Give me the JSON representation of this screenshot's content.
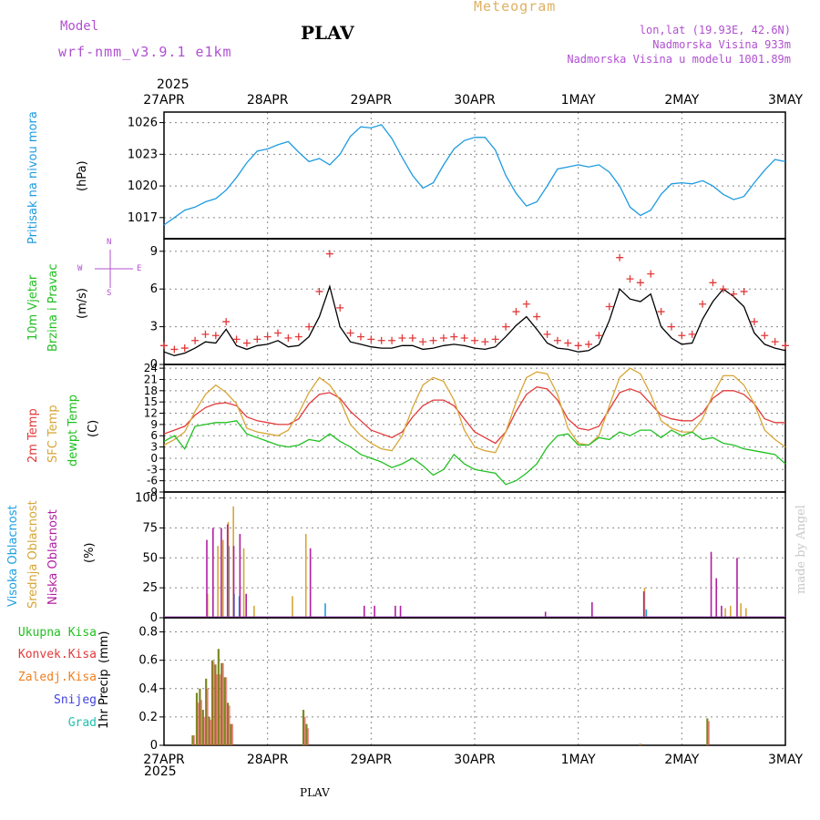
{
  "header": {
    "model_label": "Model",
    "model_name": "wrf-nmm_v3.9.1 e1km",
    "station": "PLAV",
    "meteogram_title": "Meteogram",
    "lonlat": "lon,lat (19.93E, 42.6N)",
    "altitude": "Nadmorska Visina 933m",
    "model_altitude": "Nadmorska Visina u modelu 1001.89m",
    "year_top": "2025",
    "year_bottom": "2025",
    "footer_station": "PLAV",
    "watermark": "made by Angel"
  },
  "colors": {
    "pressure": "#1e9be0",
    "wind_speed": "#000000",
    "gust": "#e23a3a",
    "temp2m": "#e23a3a",
    "sfc_temp": "#d8a637",
    "dewpt": "#20c020",
    "cloud_high": "#20a0e0",
    "cloud_mid": "#d8a637",
    "cloud_low": "#b020a0",
    "precip_total": "#20c020",
    "precip_conv": "#e23a3a",
    "precip_frz": "#f08020",
    "precip_snow": "#4040e0",
    "precip_hail": "#20c0b0",
    "label_purple": "#b050d0",
    "label_orange": "#e0b060"
  },
  "x_axis": {
    "ticks": [
      "27APR",
      "28APR",
      "29APR",
      "30APR",
      "1MAY",
      "2MAY",
      "3MAY"
    ]
  },
  "chart_data": [
    {
      "type": "line",
      "panel": "pressure",
      "ylabel_left": "Pritisak na nivou mora",
      "ylabel_unit": "(hPa)",
      "ylim": [
        1015,
        1027
      ],
      "yticks": [
        "1017",
        "1020",
        "1023",
        "1026"
      ],
      "grid": true,
      "x_days": [
        0.0,
        0.1,
        0.2,
        0.3,
        0.4,
        0.5,
        0.6,
        0.7,
        0.8,
        0.9,
        1.0,
        1.1,
        1.2,
        1.3,
        1.4,
        1.5,
        1.6,
        1.7,
        1.8,
        1.9,
        2.0,
        2.1,
        2.2,
        2.3,
        2.4,
        2.5,
        2.6,
        2.7,
        2.8,
        2.9,
        3.0,
        3.1,
        3.2,
        3.3,
        3.4,
        3.5,
        3.6,
        3.7,
        3.8,
        3.9,
        4.0,
        4.1,
        4.2,
        4.3,
        4.4,
        4.5,
        4.6,
        4.7,
        4.8,
        4.9,
        5.0,
        5.1,
        5.2,
        5.3,
        5.4,
        5.5,
        5.6,
        5.7,
        5.8,
        5.9,
        6.0
      ],
      "series": [
        {
          "values": [
            1016.3,
            1017.0,
            1017.7,
            1018.0,
            1018.5,
            1018.8,
            1019.6,
            1020.8,
            1022.2,
            1023.3,
            1023.5,
            1023.9,
            1024.2,
            1023.2,
            1022.3,
            1022.6,
            1022.0,
            1023.0,
            1024.7,
            1025.6,
            1025.5,
            1025.8,
            1024.5,
            1022.7,
            1021.0,
            1019.8,
            1020.3,
            1022.0,
            1023.5,
            1024.3,
            1024.6,
            1024.6,
            1023.4,
            1021.0,
            1019.3,
            1018.1,
            1018.5,
            1020.0,
            1021.6,
            1021.8,
            1022.0,
            1021.8,
            1022.0,
            1021.3,
            1020.0,
            1018.0,
            1017.2,
            1017.7,
            1019.2,
            1020.2,
            1020.3,
            1020.2,
            1020.5,
            1020.0,
            1019.2,
            1018.7,
            1019.0,
            1020.3,
            1021.5,
            1022.5,
            1022.3
          ]
        }
      ]
    },
    {
      "type": "line",
      "panel": "wind",
      "ylabel_left": [
        "10m Vjetar",
        "Brzina i Pravac"
      ],
      "ylabel_unit": "(m/s)",
      "compass": {
        "n": "N",
        "w": "W",
        "e": "E",
        "s": "S"
      },
      "ylim": [
        0,
        10
      ],
      "yticks": [
        "0",
        "3",
        "6",
        "9"
      ],
      "grid": true,
      "x_days": [
        0.0,
        0.1,
        0.2,
        0.3,
        0.4,
        0.5,
        0.6,
        0.7,
        0.8,
        0.9,
        1.0,
        1.1,
        1.2,
        1.3,
        1.4,
        1.5,
        1.6,
        1.7,
        1.8,
        1.9,
        2.0,
        2.1,
        2.2,
        2.3,
        2.4,
        2.5,
        2.6,
        2.7,
        2.8,
        2.9,
        3.0,
        3.1,
        3.2,
        3.3,
        3.4,
        3.5,
        3.6,
        3.7,
        3.8,
        3.9,
        4.0,
        4.1,
        4.2,
        4.3,
        4.4,
        4.5,
        4.6,
        4.7,
        4.8,
        4.9,
        5.0,
        5.1,
        5.2,
        5.3,
        5.4,
        5.5,
        5.6,
        5.7,
        5.8,
        5.9,
        6.0
      ],
      "series": [
        {
          "name": "speed",
          "values": [
            1.0,
            0.7,
            0.9,
            1.3,
            1.8,
            1.7,
            2.8,
            1.5,
            1.2,
            1.5,
            1.6,
            1.9,
            1.4,
            1.5,
            2.2,
            3.8,
            6.2,
            3.0,
            1.8,
            1.6,
            1.4,
            1.3,
            1.3,
            1.5,
            1.5,
            1.2,
            1.3,
            1.5,
            1.6,
            1.5,
            1.3,
            1.2,
            1.4,
            2.2,
            3.1,
            3.8,
            2.8,
            1.7,
            1.3,
            1.2,
            1.0,
            1.1,
            1.6,
            3.5,
            6.0,
            5.2,
            5.0,
            5.6,
            3.0,
            2.1,
            1.6,
            1.7,
            3.6,
            5.0,
            6.0,
            5.4,
            4.6,
            2.5,
            1.6,
            1.3,
            1.1
          ]
        },
        {
          "name": "gust",
          "values": [
            1.5,
            1.2,
            1.3,
            1.9,
            2.4,
            2.3,
            3.4,
            2.0,
            1.7,
            2.0,
            2.2,
            2.5,
            2.1,
            2.2,
            3.0,
            5.8,
            8.8,
            4.5,
            2.5,
            2.2,
            2.0,
            1.9,
            1.9,
            2.1,
            2.1,
            1.8,
            1.9,
            2.1,
            2.2,
            2.1,
            1.9,
            1.8,
            2.0,
            3.0,
            4.2,
            4.8,
            3.8,
            2.4,
            1.9,
            1.7,
            1.5,
            1.6,
            2.3,
            4.6,
            8.5,
            6.8,
            6.5,
            7.2,
            4.2,
            3.0,
            2.3,
            2.4,
            4.8,
            6.5,
            6.0,
            5.6,
            5.8,
            3.4,
            2.3,
            1.8,
            1.5
          ]
        }
      ],
      "gust_marker": "+"
    },
    {
      "type": "line",
      "panel": "temperature",
      "ylabel_left": [
        "2m Temp",
        "SFC Temp",
        "dewpt Temp"
      ],
      "ylabel_unit": "(C)",
      "ylim": [
        -9,
        25
      ],
      "yticks": [
        "-9",
        "-6",
        "-3",
        "0",
        "3",
        "6",
        "9",
        "12",
        "15",
        "18",
        "21",
        "24"
      ],
      "grid": true,
      "x_days": [
        0.0,
        0.1,
        0.2,
        0.3,
        0.4,
        0.5,
        0.6,
        0.7,
        0.8,
        0.9,
        1.0,
        1.1,
        1.2,
        1.3,
        1.4,
        1.5,
        1.6,
        1.7,
        1.8,
        1.9,
        2.0,
        2.1,
        2.2,
        2.3,
        2.4,
        2.5,
        2.6,
        2.7,
        2.8,
        2.9,
        3.0,
        3.1,
        3.2,
        3.3,
        3.4,
        3.5,
        3.6,
        3.7,
        3.8,
        3.9,
        4.0,
        4.1,
        4.2,
        4.3,
        4.4,
        4.5,
        4.6,
        4.7,
        4.8,
        4.9,
        5.0,
        5.1,
        5.2,
        5.3,
        5.4,
        5.5,
        5.6,
        5.7,
        5.8,
        5.9,
        6.0
      ],
      "series": [
        {
          "name": "2m Temp",
          "values": [
            6.5,
            7.5,
            8.5,
            11.5,
            13.5,
            14.5,
            14.8,
            14.0,
            11.0,
            10.0,
            9.5,
            9.0,
            9.0,
            10.5,
            14.5,
            17.0,
            17.5,
            16.0,
            12.5,
            10.0,
            7.5,
            6.5,
            5.5,
            7.0,
            11.0,
            14.0,
            15.5,
            15.5,
            14.0,
            10.5,
            7.0,
            5.5,
            4.0,
            7.0,
            12.5,
            17.0,
            19.0,
            18.5,
            15.5,
            10.5,
            8.0,
            7.5,
            8.5,
            13.0,
            17.5,
            18.5,
            17.5,
            14.5,
            11.5,
            10.5,
            10.0,
            10.0,
            12.0,
            16.0,
            18.0,
            18.0,
            17.0,
            14.5,
            10.5,
            9.5,
            9.5
          ]
        },
        {
          "name": "SFC Temp",
          "values": [
            3.5,
            5.0,
            7.0,
            12.5,
            17.0,
            19.5,
            17.5,
            14.5,
            8.0,
            7.0,
            6.5,
            6.0,
            7.5,
            12.0,
            17.5,
            21.5,
            19.5,
            15.5,
            9.0,
            6.0,
            4.0,
            2.5,
            2.0,
            6.0,
            13.5,
            19.5,
            21.5,
            20.5,
            15.5,
            7.5,
            3.0,
            2.0,
            1.5,
            7.0,
            15.0,
            21.5,
            23.0,
            22.5,
            17.0,
            8.0,
            4.0,
            3.5,
            6.0,
            14.0,
            21.5,
            24.0,
            22.5,
            17.0,
            10.0,
            8.0,
            7.0,
            7.0,
            10.5,
            17.0,
            22.0,
            22.0,
            19.5,
            14.5,
            7.5,
            5.0,
            3.0
          ]
        },
        {
          "name": "dewpt Temp",
          "values": [
            4.5,
            6.0,
            2.5,
            8.5,
            9.0,
            9.5,
            9.5,
            10.0,
            6.5,
            5.5,
            4.5,
            3.5,
            3.0,
            3.5,
            5.0,
            4.5,
            6.5,
            4.5,
            3.0,
            1.0,
            0.0,
            -1.0,
            -2.5,
            -1.5,
            0.0,
            -2.0,
            -4.5,
            -3.0,
            1.0,
            -1.5,
            -3.0,
            -3.5,
            -4.0,
            -7.0,
            -6.0,
            -4.0,
            -1.5,
            3.0,
            6.0,
            6.5,
            3.5,
            3.5,
            5.5,
            5.0,
            7.0,
            6.0,
            7.5,
            7.5,
            5.5,
            7.5,
            6.0,
            7.0,
            5.0,
            5.5,
            4.0,
            3.5,
            2.5,
            2.0,
            1.5,
            1.0,
            -1.5
          ]
        }
      ]
    },
    {
      "type": "bar",
      "panel": "clouds",
      "ylabel_left": [
        "Visoka Oblacnost",
        "Srednja Oblacnost",
        "Niska Oblacnost"
      ],
      "ylabel_unit": "(%)",
      "ylim": [
        0,
        105
      ],
      "yticks": [
        "0",
        "25",
        "50",
        "75",
        "100"
      ],
      "grid": true,
      "series": [
        {
          "name": "Visoka Oblacnost",
          "x_days": [
            0.62,
            0.67,
            0.72,
            1.5,
            1.55,
            4.65
          ],
          "values": [
            60,
            20,
            18,
            0,
            12,
            7
          ]
        },
        {
          "name": "Srednja Oblacnost",
          "x_days": [
            0.4,
            0.5,
            0.55,
            0.6,
            0.65,
            0.75,
            0.85,
            1.22,
            1.35,
            4.62,
            5.4,
            5.45,
            5.55,
            5.6
          ],
          "values": [
            20,
            60,
            65,
            80,
            93,
            58,
            10,
            18,
            70,
            25,
            8,
            10,
            12,
            8
          ]
        },
        {
          "name": "Niska Oblacnost",
          "x_days": [
            0.38,
            0.44,
            0.52,
            0.58,
            0.64,
            0.7,
            0.76,
            1.38,
            1.9,
            2.0,
            2.2,
            2.25,
            3.65,
            4.1,
            4.6,
            5.25,
            5.3,
            5.35,
            5.5
          ],
          "values": [
            65,
            75,
            75,
            78,
            60,
            70,
            20,
            58,
            10,
            10,
            10,
            10,
            5,
            13,
            22,
            55,
            33,
            10,
            50
          ]
        }
      ]
    },
    {
      "type": "bar",
      "panel": "precipitation",
      "ylabel_left": "1hr Precip",
      "ylabel_unit": "(mm)",
      "legend": [
        "Ukupna Kisa",
        "Konvek.Kisa",
        "Zaledj.Kisa",
        "Snijeg",
        "Grad"
      ],
      "ylim": [
        0,
        0.9
      ],
      "yticks": [
        "0",
        "0.2",
        "0.4",
        "0.6",
        "0.8"
      ],
      "grid": true,
      "x_days": [
        0.28,
        0.32,
        0.35,
        0.38,
        0.41,
        0.44,
        0.47,
        0.5,
        0.53,
        0.56,
        0.59,
        0.62,
        0.65,
        0.68,
        0.71,
        1.35,
        1.38,
        4.6,
        5.25
      ],
      "series": [
        {
          "name": "Ukupna Kisa",
          "values": [
            0.07,
            0.37,
            0.4,
            0.25,
            0.47,
            0.2,
            0.6,
            0.57,
            0.68,
            0.58,
            0.48,
            0.3,
            0.15,
            0,
            0,
            0.25,
            0.15,
            0.01,
            0.19
          ]
        },
        {
          "name": "Konvek.Kisa",
          "values": [
            0.07,
            0.3,
            0.32,
            0.2,
            0.4,
            0.18,
            0.59,
            0.5,
            0.5,
            0.58,
            0.48,
            0.28,
            0.15,
            0,
            0,
            0.2,
            0.12,
            0.01,
            0.17
          ]
        }
      ]
    }
  ]
}
